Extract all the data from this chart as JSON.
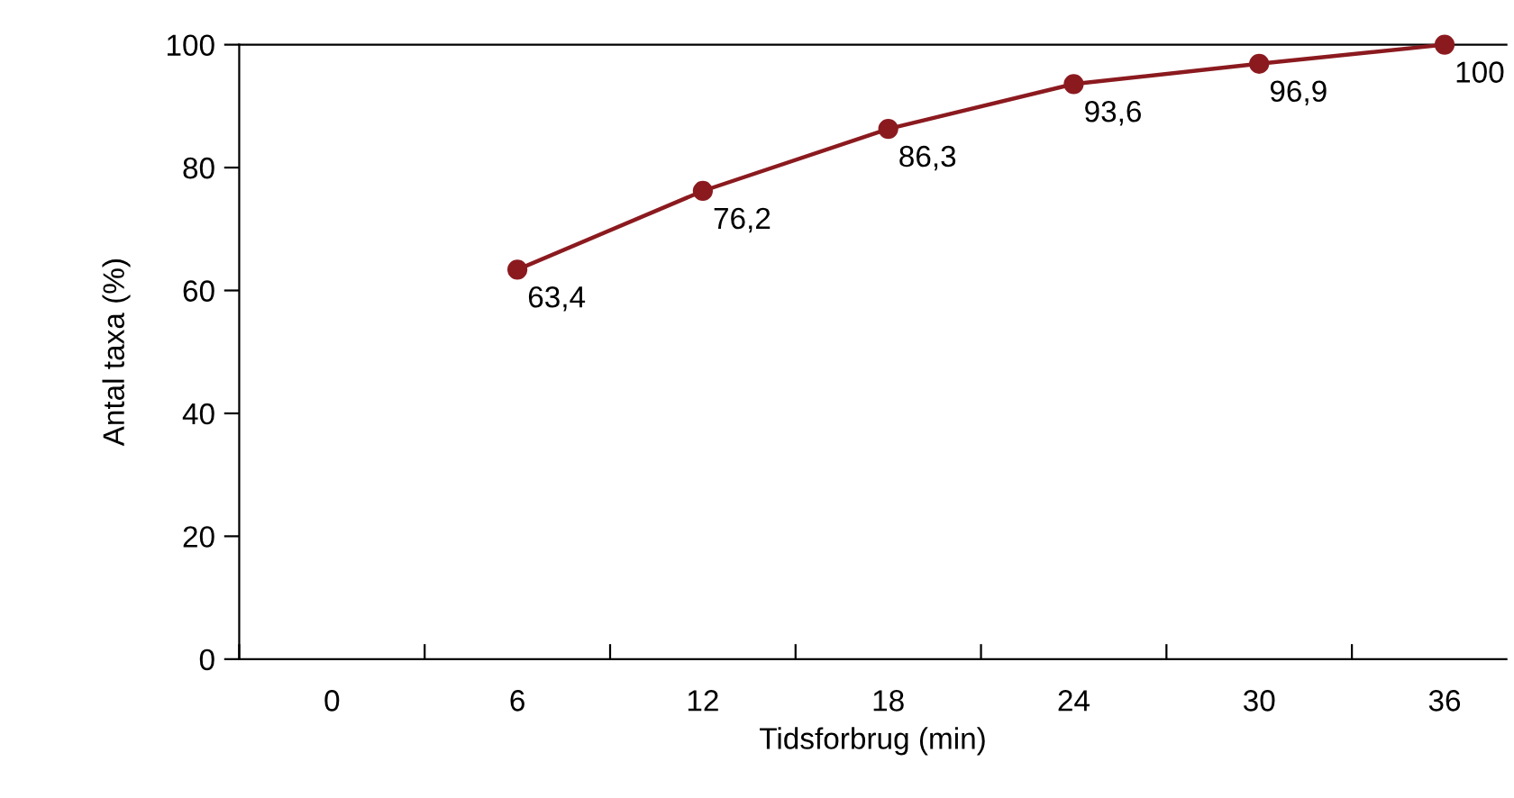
{
  "chart_data": {
    "type": "line",
    "xlabel": "Tidsforbrug (min)",
    "ylabel": "Antal taxa (%)",
    "x": [
      6,
      12,
      18,
      24,
      30,
      36
    ],
    "series": [
      {
        "color": "#8b1a1f",
        "values": [
          63.4,
          76.2,
          86.3,
          93.6,
          96.9,
          100
        ],
        "value_labels": [
          "63,4",
          "76,2",
          "86,3",
          "93,6",
          "96,9",
          "100"
        ]
      }
    ],
    "xlim": [
      -3,
      38
    ],
    "xticks": [
      {
        "value": -3,
        "label": null
      },
      {
        "value": 0,
        "label": "0"
      },
      {
        "value": 3,
        "label": null
      },
      {
        "value": 6,
        "label": "6"
      },
      {
        "value": 9,
        "label": null
      },
      {
        "value": 12,
        "label": "12"
      },
      {
        "value": 15,
        "label": null
      },
      {
        "value": 18,
        "label": "18"
      },
      {
        "value": 21,
        "label": null
      },
      {
        "value": 24,
        "label": "24"
      },
      {
        "value": 27,
        "label": null
      },
      {
        "value": 30,
        "label": "30"
      },
      {
        "value": 33,
        "label": null
      },
      {
        "value": 36,
        "label": "36"
      }
    ],
    "ylim": [
      0,
      100
    ],
    "yticks": [
      0,
      20,
      40,
      60,
      80,
      100
    ],
    "marker": "circle",
    "line_style": "solid",
    "grid": false,
    "legend": false
  }
}
